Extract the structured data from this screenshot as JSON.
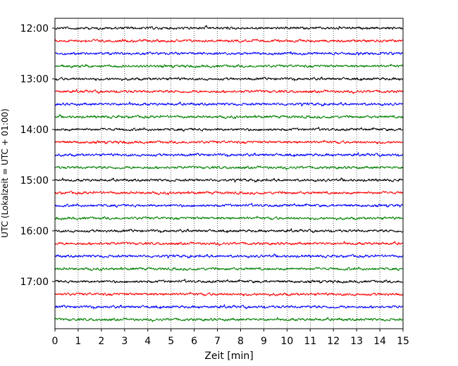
{
  "chart_data": {
    "type": "line",
    "title": "",
    "xlabel": "Zeit  [min]",
    "ylabel": "UTC (Lokalzeit = UTC + 01:00)",
    "xlim": [
      0,
      15
    ],
    "x_ticks": [
      "0",
      "1",
      "2",
      "3",
      "4",
      "5",
      "6",
      "7",
      "8",
      "9",
      "10",
      "11",
      "12",
      "13",
      "14",
      "15"
    ],
    "y_ticks": [
      "12:00",
      "13:00",
      "14:00",
      "15:00",
      "16:00",
      "17:00"
    ],
    "grid": "vertical dotted",
    "trace_interval_min": 15,
    "start_time": "12:00",
    "end_time": "17:45",
    "trace_count": 24,
    "trace_colors": [
      "#000000",
      "#ff0000",
      "#0000ff",
      "#008000"
    ]
  }
}
